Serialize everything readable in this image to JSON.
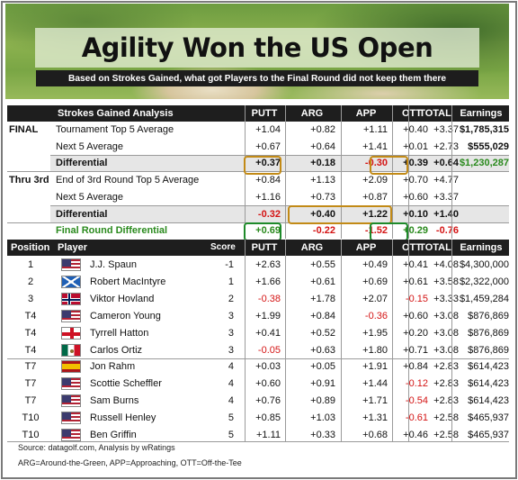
{
  "title": "Agility Won the US Open",
  "subtitle": "Based on Strokes Gained, what got Players to the Final Round did not keep them there",
  "sg_header": {
    "label": "Strokes Gained Analysis",
    "cols": [
      "PUTT",
      "ARG",
      "APP",
      "OTT",
      "TOTAL",
      "Earnings"
    ]
  },
  "sg_rows": [
    {
      "section": "FINAL",
      "label": "Tournament Top 5 Average",
      "vals": [
        "+1.04",
        "+0.82",
        "+1.11",
        "+0.40",
        "+3.37",
        "$1,785,315"
      ]
    },
    {
      "section": "",
      "label": "Next 5 Average",
      "vals": [
        "+0.67",
        "+0.64",
        "+1.41",
        "+0.01",
        "+2.73",
        "$555,029"
      ]
    },
    {
      "section": "",
      "label": "Differential",
      "vals": [
        "+0.37",
        "+0.18",
        "-0.30",
        "+0.39",
        "+0.64",
        "$1,230,287"
      ]
    },
    {
      "section": "Thru 3rd",
      "label": "End of 3rd Round Top 5 Average",
      "vals": [
        "+0.84",
        "+1.13",
        "+2.09",
        "+0.70",
        "+4.77",
        ""
      ]
    },
    {
      "section": "",
      "label": "Next 5 Average",
      "vals": [
        "+1.16",
        "+0.73",
        "+0.87",
        "+0.60",
        "+3.37",
        ""
      ]
    },
    {
      "section": "",
      "label": "Differential",
      "vals": [
        "-0.32",
        "+0.40",
        "+1.22",
        "+0.10",
        "+1.40",
        ""
      ]
    },
    {
      "section": "",
      "label": "Final Round Differential",
      "vals": [
        "+0.69",
        "-0.22",
        "-1.52",
        "+0.29",
        "-0.76",
        ""
      ]
    }
  ],
  "player_header": {
    "position": "Position",
    "player": "Player",
    "score": "Score",
    "cols": [
      "PUTT",
      "ARG",
      "APP",
      "OTT",
      "TOTAL",
      "Earnings"
    ]
  },
  "players": [
    {
      "pos": "1",
      "name": "J.J. Spaun",
      "flag": "usa",
      "score": "-1",
      "vals": [
        "+2.63",
        "+0.55",
        "+0.49",
        "+0.41",
        "+4.08",
        "$4,300,000"
      ]
    },
    {
      "pos": "2",
      "name": "Robert MacIntyre",
      "flag": "scotland",
      "score": "1",
      "vals": [
        "+1.66",
        "+0.61",
        "+0.69",
        "+0.61",
        "+3.58",
        "$2,322,000"
      ]
    },
    {
      "pos": "3",
      "name": "Viktor Hovland",
      "flag": "norway",
      "score": "2",
      "vals": [
        "-0.38",
        "+1.78",
        "+2.07",
        "-0.15",
        "+3.33",
        "$1,459,284"
      ]
    },
    {
      "pos": "T4",
      "name": "Cameron Young",
      "flag": "usa",
      "score": "3",
      "vals": [
        "+1.99",
        "+0.84",
        "-0.36",
        "+0.60",
        "+3.08",
        "$876,869"
      ]
    },
    {
      "pos": "T4",
      "name": "Tyrrell Hatton",
      "flag": "england",
      "score": "3",
      "vals": [
        "+0.41",
        "+0.52",
        "+1.95",
        "+0.20",
        "+3.08",
        "$876,869"
      ]
    },
    {
      "pos": "T4",
      "name": "Carlos Ortiz",
      "flag": "mexico",
      "score": "3",
      "vals": [
        "-0.05",
        "+0.63",
        "+1.80",
        "+0.71",
        "+3.08",
        "$876,869"
      ]
    },
    {
      "pos": "T7",
      "name": "Jon Rahm",
      "flag": "spain",
      "score": "4",
      "vals": [
        "+0.03",
        "+0.05",
        "+1.91",
        "+0.84",
        "+2.83",
        "$614,423"
      ]
    },
    {
      "pos": "T7",
      "name": "Scottie Scheffler",
      "flag": "usa",
      "score": "4",
      "vals": [
        "+0.60",
        "+0.91",
        "+1.44",
        "-0.12",
        "+2.83",
        "$614,423"
      ]
    },
    {
      "pos": "T7",
      "name": "Sam Burns",
      "flag": "usa",
      "score": "4",
      "vals": [
        "+0.76",
        "+0.89",
        "+1.71",
        "-0.54",
        "+2.83",
        "$614,423"
      ]
    },
    {
      "pos": "T10",
      "name": "Russell Henley",
      "flag": "usa",
      "score": "5",
      "vals": [
        "+0.85",
        "+1.03",
        "+1.31",
        "-0.61",
        "+2.58",
        "$465,937"
      ]
    },
    {
      "pos": "T10",
      "name": "Ben Griffin",
      "flag": "usa",
      "score": "5",
      "vals": [
        "+1.11",
        "+0.33",
        "+0.68",
        "+0.46",
        "+2.58",
        "$465,937"
      ]
    }
  ],
  "footer": {
    "source": "Source: datagolf.com, Analysis by wRatings",
    "legend": "ARG=Around-the-Green, APP=Approaching, OTT=Off-the-Tee"
  },
  "colors": {
    "header_bg": "#1e1e1e",
    "negative": "#d41414",
    "positive_highlight": "#2a8a1d",
    "gold_box": "#c28a16",
    "green_box": "#1e8a2a"
  }
}
